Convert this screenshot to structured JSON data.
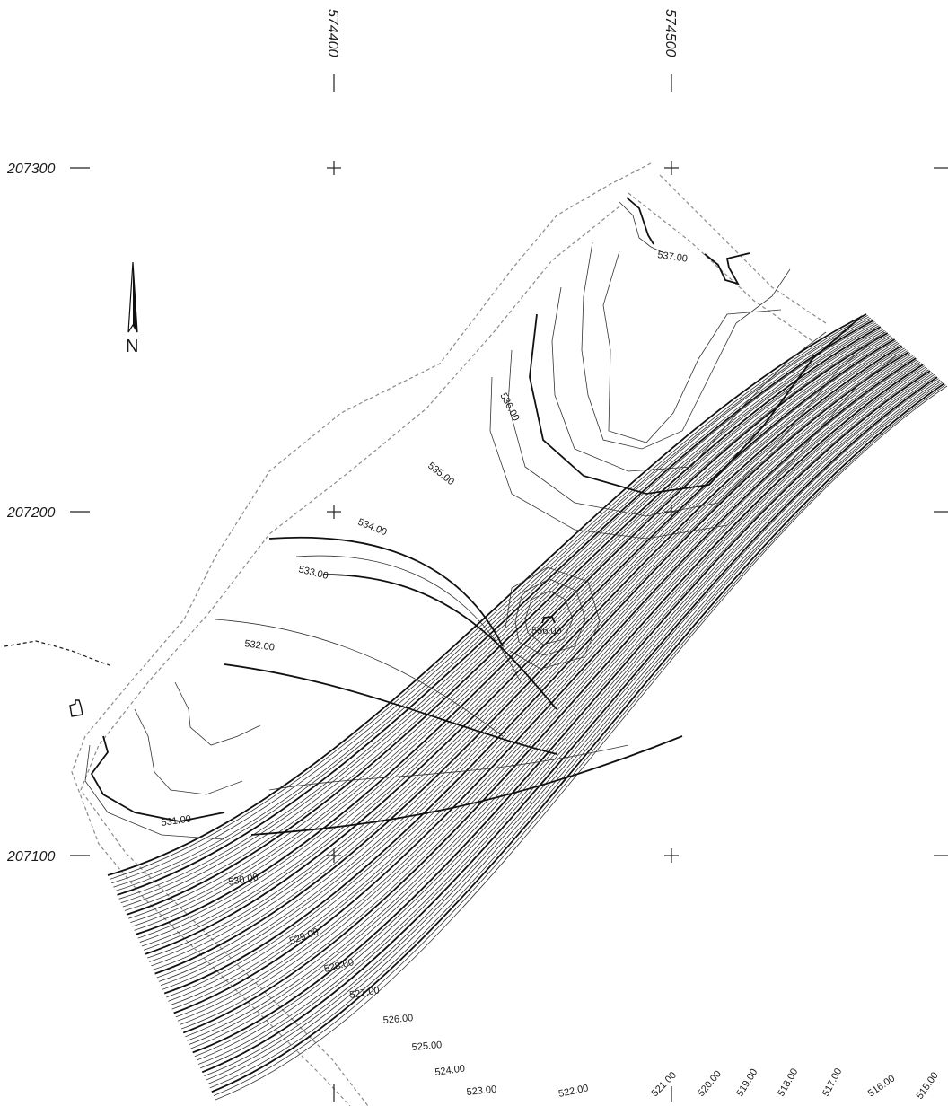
{
  "map": {
    "north_label": "N",
    "grid": {
      "eastings": [
        "574400",
        "574500"
      ],
      "northings": [
        "207300",
        "207200",
        "207100"
      ]
    },
    "contour_labels": [
      "537.00",
      "536.00",
      "535.00",
      "534.00",
      "533.00",
      "536.00",
      "532.00",
      "531.00",
      "530.00",
      "529.00",
      "528.00",
      "527.00",
      "526.00",
      "525.00",
      "524.00",
      "523.00",
      "522.00",
      "521.00",
      "520.00",
      "519.00",
      "518.00",
      "517.00",
      "516.00",
      "515.00"
    ],
    "colors": {
      "ink": "#111111",
      "boundary": "#8a8a8a",
      "background": "#ffffff"
    }
  }
}
